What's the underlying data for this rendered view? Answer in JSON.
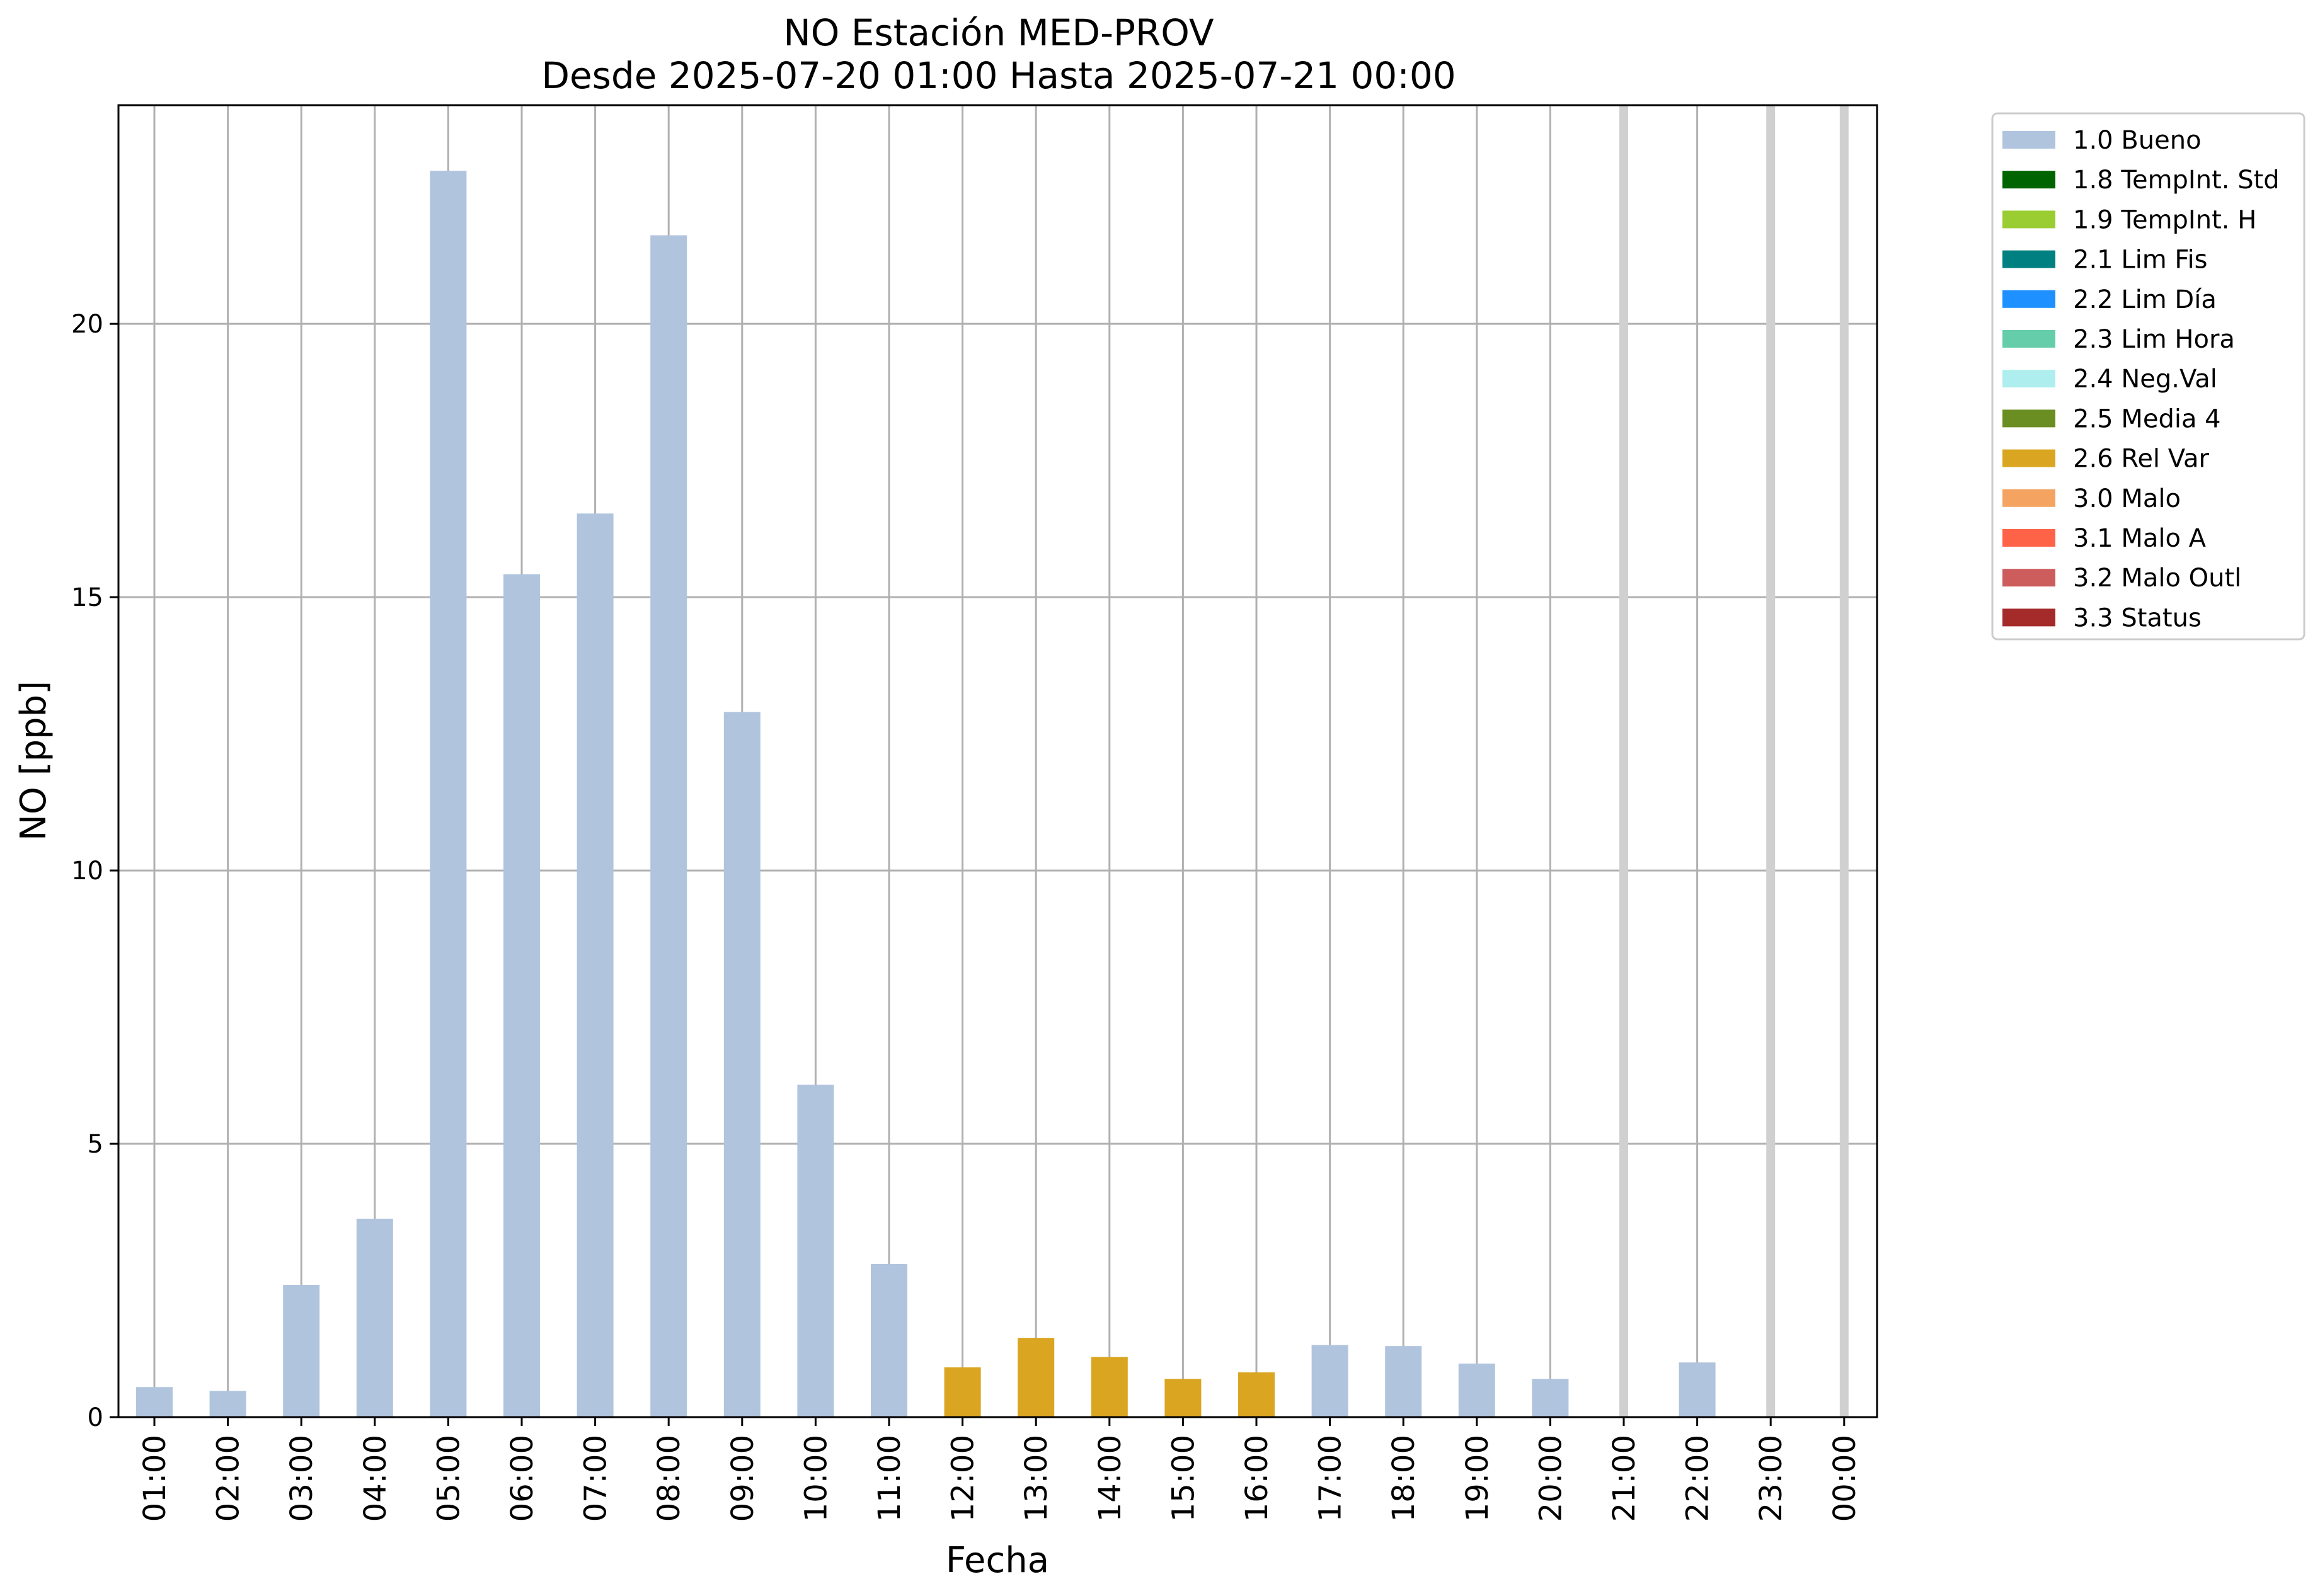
{
  "chart_data": {
    "type": "bar",
    "title": "NO Estación MED-PROV",
    "subtitle": "Desde 2025-07-20 01:00 Hasta 2025-07-21 00:00",
    "xlabel": "Fecha",
    "ylabel": "NO [ppb]",
    "ylim": [
      0,
      24
    ],
    "yticks": [
      0,
      5,
      10,
      15,
      20
    ],
    "grid": true,
    "legend_position": "outside-top-right",
    "categories": [
      "01:00",
      "02:00",
      "03:00",
      "04:00",
      "05:00",
      "06:00",
      "07:00",
      "08:00",
      "09:00",
      "10:00",
      "11:00",
      "12:00",
      "13:00",
      "14:00",
      "15:00",
      "16:00",
      "17:00",
      "18:00",
      "19:00",
      "20:00",
      "21:00",
      "22:00",
      "23:00",
      "00:00"
    ],
    "series": [
      {
        "name": "1.0 Bueno",
        "color": "#b0c4de",
        "values": [
          0.55,
          0.48,
          2.42,
          3.63,
          22.8,
          15.42,
          16.53,
          21.62,
          12.9,
          6.08,
          2.8,
          null,
          null,
          null,
          null,
          null,
          1.32,
          1.3,
          0.98,
          0.7,
          null,
          1.0,
          null,
          null
        ]
      },
      {
        "name": "2.6 Rel Var",
        "color": "#daa520",
        "values": [
          null,
          null,
          null,
          null,
          null,
          null,
          null,
          null,
          null,
          null,
          null,
          0.91,
          1.45,
          1.1,
          0.7,
          0.82,
          null,
          null,
          null,
          null,
          null,
          null,
          null,
          null
        ]
      }
    ],
    "missing_markers": [
      "21:00",
      "23:00",
      "00:00"
    ],
    "legend": [
      {
        "label": "1.0 Bueno",
        "color": "#b0c4de"
      },
      {
        "label": "1.8 TempInt. Std",
        "color": "#006400"
      },
      {
        "label": "1.9 TempInt. H",
        "color": "#9acd32"
      },
      {
        "label": "2.1 Lim Fis",
        "color": "#008080"
      },
      {
        "label": "2.2 Lim Día",
        "color": "#1e90ff"
      },
      {
        "label": "2.3 Lim Hora",
        "color": "#66cdaa"
      },
      {
        "label": "2.4 Neg.Val",
        "color": "#afeeee"
      },
      {
        "label": "2.5 Media 4",
        "color": "#6b8e23"
      },
      {
        "label": "2.6 Rel Var",
        "color": "#daa520"
      },
      {
        "label": "3.0 Malo",
        "color": "#f4a460"
      },
      {
        "label": "3.1 Malo A",
        "color": "#ff6347"
      },
      {
        "label": "3.2 Malo Outl",
        "color": "#cd5c5c"
      },
      {
        "label": "3.3 Status",
        "color": "#a52a2a"
      }
    ]
  }
}
